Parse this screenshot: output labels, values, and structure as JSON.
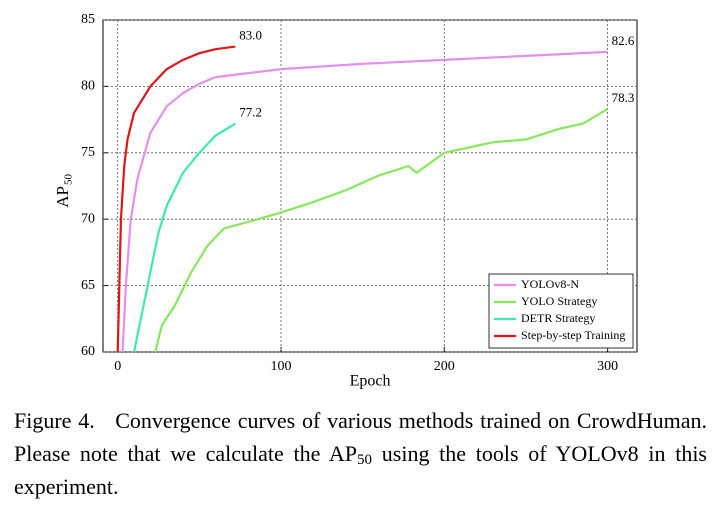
{
  "chart_data": {
    "type": "line",
    "ylabel": "AP",
    "ylabel_subscript": "50",
    "xlabel": "Epoch",
    "xlim": [
      -9,
      318
    ],
    "xticks": [
      0,
      100,
      200,
      300
    ],
    "ylim": [
      60,
      85
    ],
    "yticks": [
      60,
      65,
      70,
      75,
      80,
      85
    ],
    "grid": true,
    "legend": "lower right",
    "series": [
      {
        "name": "YOLOv8-N",
        "color": "#e58ef0",
        "x": [
          3,
          5,
          8,
          12,
          20,
          30,
          40,
          50,
          60,
          80,
          100,
          150,
          200,
          250,
          300
        ],
        "values": [
          60,
          65,
          70,
          73,
          76.5,
          78.5,
          79.5,
          80.2,
          80.7,
          81.0,
          81.3,
          81.7,
          82.0,
          82.3,
          82.6
        ],
        "value_labels": [
          null,
          null,
          null,
          null,
          null,
          null,
          null,
          null,
          null,
          null,
          null,
          null,
          null,
          null,
          "82.6"
        ]
      },
      {
        "name": "YOLO Strategy",
        "color": "#86e85c",
        "x": [
          23,
          27,
          35,
          45,
          55,
          65,
          80,
          100,
          120,
          140,
          160,
          178,
          183,
          200,
          230,
          250,
          270,
          285,
          300
        ],
        "values": [
          60,
          62,
          63.5,
          66,
          68,
          69.3,
          69.8,
          70.5,
          71.3,
          72.2,
          73.3,
          74,
          73.5,
          75,
          75.8,
          76,
          76.8,
          77.2,
          78.3
        ],
        "value_labels": [
          null,
          null,
          null,
          null,
          null,
          null,
          null,
          null,
          null,
          null,
          null,
          null,
          null,
          null,
          null,
          null,
          null,
          null,
          "78.3"
        ]
      },
      {
        "name": "DETR Strategy",
        "color": "#3ee8b4",
        "x": [
          10,
          15,
          20,
          25,
          30,
          40,
          50,
          60,
          72
        ],
        "values": [
          60,
          63,
          66,
          69,
          71,
          73.5,
          75,
          76.3,
          77.2
        ],
        "value_labels": [
          null,
          null,
          null,
          null,
          null,
          null,
          null,
          null,
          "77.2"
        ]
      },
      {
        "name": "Step-by-step Training",
        "color": "#e01515",
        "x": [
          0,
          1,
          2,
          4,
          6,
          10,
          15,
          20,
          30,
          40,
          50,
          60,
          72
        ],
        "values": [
          60,
          65,
          70,
          74,
          76,
          78,
          79,
          80,
          81.3,
          82,
          82.5,
          82.8,
          83.0
        ],
        "value_labels": [
          null,
          null,
          null,
          null,
          null,
          null,
          null,
          null,
          null,
          null,
          null,
          null,
          "83.0"
        ]
      }
    ]
  },
  "caption": {
    "label": "Figure 4.",
    "text": "Convergence curves of various methods trained on CrowdHuman. Please note that we calculate the AP",
    "subscript": "50",
    "tail": "using the tools of YOLOv8 in this experiment."
  }
}
